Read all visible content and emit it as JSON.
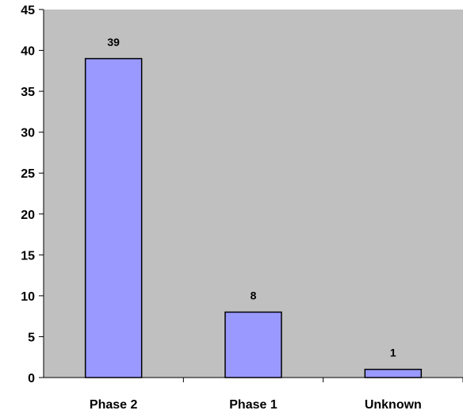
{
  "chart_data": {
    "type": "bar",
    "title": "",
    "xlabel": "",
    "ylabel": "",
    "categories": [
      "Phase 2",
      "Phase 1",
      "Unknown"
    ],
    "values": [
      39,
      8,
      1
    ],
    "data_labels": [
      "39",
      "8",
      "1"
    ],
    "ylim": [
      0,
      45
    ],
    "yticks": [
      0,
      5,
      10,
      15,
      20,
      25,
      30,
      35,
      40,
      45
    ],
    "ytick_labels": [
      "0",
      "5",
      "10",
      "15",
      "20",
      "25",
      "30",
      "35",
      "40",
      "45"
    ],
    "grid": false,
    "legend": "none",
    "colors": {
      "plot_background": "#c0c0c0",
      "bar_fill": "#9999ff",
      "bar_stroke": "#000000",
      "axis": "#000000"
    }
  }
}
